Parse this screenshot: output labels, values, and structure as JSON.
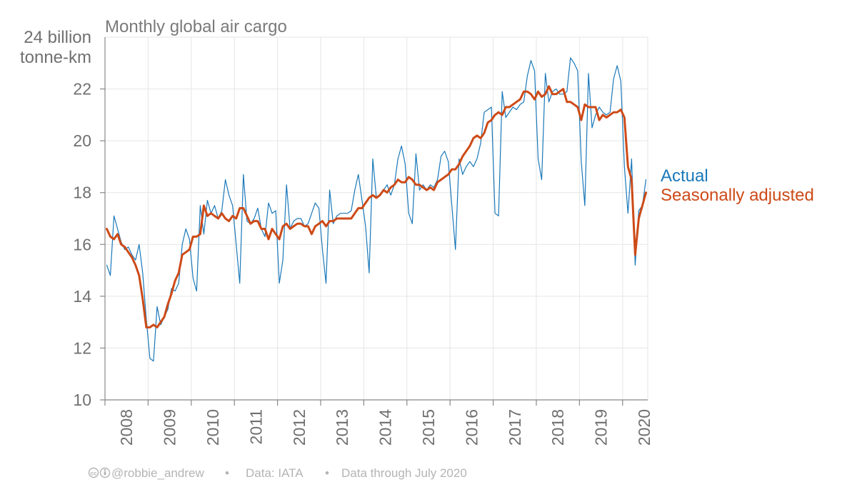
{
  "chart_data": {
    "type": "line",
    "title": "Monthly global air cargo",
    "ylabel_top": "24 billion",
    "ylabel_unit": "tonne-km",
    "ylim": [
      10,
      24
    ],
    "yticks": [
      10,
      12,
      14,
      16,
      18,
      20,
      22
    ],
    "x_start": "2008-01",
    "x_end": "2020-07",
    "xticks": [
      "2008",
      "2009",
      "2010",
      "2011",
      "2012",
      "2013",
      "2014",
      "2015",
      "2016",
      "2017",
      "2018",
      "2019",
      "2020"
    ],
    "grid": true,
    "legend_placement": "right",
    "series": [
      {
        "name": "Actual",
        "color": "#1a78b9",
        "x": [
          "2008-01",
          "2008-02",
          "2008-03",
          "2008-04",
          "2008-05",
          "2008-06",
          "2008-07",
          "2008-08",
          "2008-09",
          "2008-10",
          "2008-11",
          "2008-12",
          "2009-01",
          "2009-02",
          "2009-03",
          "2009-04",
          "2009-05",
          "2009-06",
          "2009-07",
          "2009-08",
          "2009-09",
          "2009-10",
          "2009-11",
          "2009-12",
          "2010-01",
          "2010-02",
          "2010-03",
          "2010-04",
          "2010-05",
          "2010-06",
          "2010-07",
          "2010-08",
          "2010-09",
          "2010-10",
          "2010-11",
          "2010-12",
          "2011-01",
          "2011-02",
          "2011-03",
          "2011-04",
          "2011-05",
          "2011-06",
          "2011-07",
          "2011-08",
          "2011-09",
          "2011-10",
          "2011-11",
          "2011-12",
          "2012-01",
          "2012-02",
          "2012-03",
          "2012-04",
          "2012-05",
          "2012-06",
          "2012-07",
          "2012-08",
          "2012-09",
          "2012-10",
          "2012-11",
          "2012-12",
          "2013-01",
          "2013-02",
          "2013-03",
          "2013-04",
          "2013-05",
          "2013-06",
          "2013-07",
          "2013-08",
          "2013-09",
          "2013-10",
          "2013-11",
          "2013-12",
          "2014-01",
          "2014-02",
          "2014-03",
          "2014-04",
          "2014-05",
          "2014-06",
          "2014-07",
          "2014-08",
          "2014-09",
          "2014-10",
          "2014-11",
          "2014-12",
          "2015-01",
          "2015-02",
          "2015-03",
          "2015-04",
          "2015-05",
          "2015-06",
          "2015-07",
          "2015-08",
          "2015-09",
          "2015-10",
          "2015-11",
          "2015-12",
          "2016-01",
          "2016-02",
          "2016-03",
          "2016-04",
          "2016-05",
          "2016-06",
          "2016-07",
          "2016-08",
          "2016-09",
          "2016-10",
          "2016-11",
          "2016-12",
          "2017-01",
          "2017-02",
          "2017-03",
          "2017-04",
          "2017-05",
          "2017-06",
          "2017-07",
          "2017-08",
          "2017-09",
          "2017-10",
          "2017-11",
          "2017-12",
          "2018-01",
          "2018-02",
          "2018-03",
          "2018-04",
          "2018-05",
          "2018-06",
          "2018-07",
          "2018-08",
          "2018-09",
          "2018-10",
          "2018-11",
          "2018-12",
          "2019-01",
          "2019-02",
          "2019-03",
          "2019-04",
          "2019-05",
          "2019-06",
          "2019-07",
          "2019-08",
          "2019-09",
          "2019-10",
          "2019-11",
          "2019-12",
          "2020-01",
          "2020-02",
          "2020-03",
          "2020-04",
          "2020-05",
          "2020-06",
          "2020-07"
        ],
        "values": [
          15.2,
          14.8,
          17.1,
          16.6,
          16.1,
          15.8,
          15.9,
          15.6,
          15.4,
          16.0,
          14.9,
          13.1,
          11.6,
          11.5,
          13.6,
          12.9,
          13.2,
          13.5,
          14.3,
          14.2,
          14.5,
          16.0,
          16.6,
          16.2,
          14.7,
          14.2,
          17.5,
          16.4,
          17.7,
          17.2,
          17.5,
          17.0,
          17.3,
          18.5,
          17.9,
          17.5,
          16.0,
          14.5,
          18.7,
          16.9,
          16.8,
          17.0,
          17.4,
          16.6,
          16.3,
          17.6,
          17.2,
          17.3,
          14.5,
          15.4,
          18.3,
          16.6,
          16.9,
          17.0,
          17.0,
          16.7,
          16.8,
          17.2,
          17.6,
          17.4,
          15.8,
          14.5,
          18.1,
          16.8,
          17.1,
          17.2,
          17.2,
          17.2,
          17.3,
          18.1,
          18.7,
          17.7,
          16.7,
          14.9,
          19.3,
          17.8,
          17.9,
          18.1,
          18.3,
          17.9,
          18.3,
          19.3,
          19.8,
          19.1,
          17.2,
          16.8,
          19.5,
          18.1,
          18.3,
          18.1,
          18.3,
          18.2,
          18.5,
          19.4,
          19.6,
          19.2,
          17.5,
          15.8,
          19.3,
          18.7,
          19.0,
          19.2,
          19.0,
          19.3,
          19.9,
          21.1,
          21.2,
          21.3,
          17.2,
          17.1,
          21.9,
          20.9,
          21.1,
          21.3,
          21.2,
          21.4,
          21.5,
          22.5,
          23.1,
          22.7,
          19.3,
          18.5,
          22.6,
          21.5,
          21.9,
          22.0,
          21.8,
          21.8,
          21.9,
          23.2,
          23.0,
          22.7,
          19.2,
          17.5,
          22.6,
          20.5,
          21.0,
          21.3,
          21.1,
          21.0,
          21.1,
          22.4,
          22.9,
          22.3,
          19.0,
          17.2,
          19.3,
          15.2,
          17.3,
          17.5,
          18.5
        ]
      },
      {
        "name": "Seasonally adjusted",
        "color": "#cd4a17",
        "x": [
          "2008-01",
          "2008-02",
          "2008-03",
          "2008-04",
          "2008-05",
          "2008-06",
          "2008-07",
          "2008-08",
          "2008-09",
          "2008-10",
          "2008-11",
          "2008-12",
          "2009-01",
          "2009-02",
          "2009-03",
          "2009-04",
          "2009-05",
          "2009-06",
          "2009-07",
          "2009-08",
          "2009-09",
          "2009-10",
          "2009-11",
          "2009-12",
          "2010-01",
          "2010-02",
          "2010-03",
          "2010-04",
          "2010-05",
          "2010-06",
          "2010-07",
          "2010-08",
          "2010-09",
          "2010-10",
          "2010-11",
          "2010-12",
          "2011-01",
          "2011-02",
          "2011-03",
          "2011-04",
          "2011-05",
          "2011-06",
          "2011-07",
          "2011-08",
          "2011-09",
          "2011-10",
          "2011-11",
          "2011-12",
          "2012-01",
          "2012-02",
          "2012-03",
          "2012-04",
          "2012-05",
          "2012-06",
          "2012-07",
          "2012-08",
          "2012-09",
          "2012-10",
          "2012-11",
          "2012-12",
          "2013-01",
          "2013-02",
          "2013-03",
          "2013-04",
          "2013-05",
          "2013-06",
          "2013-07",
          "2013-08",
          "2013-09",
          "2013-10",
          "2013-11",
          "2013-12",
          "2014-01",
          "2014-02",
          "2014-03",
          "2014-04",
          "2014-05",
          "2014-06",
          "2014-07",
          "2014-08",
          "2014-09",
          "2014-10",
          "2014-11",
          "2014-12",
          "2015-01",
          "2015-02",
          "2015-03",
          "2015-04",
          "2015-05",
          "2015-06",
          "2015-07",
          "2015-08",
          "2015-09",
          "2015-10",
          "2015-11",
          "2015-12",
          "2016-01",
          "2016-02",
          "2016-03",
          "2016-04",
          "2016-05",
          "2016-06",
          "2016-07",
          "2016-08",
          "2016-09",
          "2016-10",
          "2016-11",
          "2016-12",
          "2017-01",
          "2017-02",
          "2017-03",
          "2017-04",
          "2017-05",
          "2017-06",
          "2017-07",
          "2017-08",
          "2017-09",
          "2017-10",
          "2017-11",
          "2017-12",
          "2018-01",
          "2018-02",
          "2018-03",
          "2018-04",
          "2018-05",
          "2018-06",
          "2018-07",
          "2018-08",
          "2018-09",
          "2018-10",
          "2018-11",
          "2018-12",
          "2019-01",
          "2019-02",
          "2019-03",
          "2019-04",
          "2019-05",
          "2019-06",
          "2019-07",
          "2019-08",
          "2019-09",
          "2019-10",
          "2019-11",
          "2019-12",
          "2020-01",
          "2020-02",
          "2020-03",
          "2020-04",
          "2020-05",
          "2020-06",
          "2020-07"
        ],
        "values": [
          16.6,
          16.3,
          16.2,
          16.4,
          16.0,
          15.9,
          15.7,
          15.5,
          15.2,
          14.8,
          13.9,
          12.8,
          12.8,
          12.9,
          12.8,
          13.0,
          13.2,
          13.7,
          14.1,
          14.6,
          14.9,
          15.6,
          15.7,
          15.8,
          16.3,
          16.3,
          16.4,
          17.5,
          17.1,
          17.2,
          17.1,
          17.0,
          17.2,
          17.0,
          16.9,
          17.1,
          17.0,
          17.4,
          17.4,
          17.1,
          16.8,
          16.9,
          16.9,
          16.6,
          16.6,
          16.2,
          16.6,
          16.4,
          16.2,
          16.7,
          16.8,
          16.6,
          16.7,
          16.8,
          16.8,
          16.7,
          16.7,
          16.4,
          16.7,
          16.8,
          16.9,
          16.7,
          16.9,
          16.9,
          17.0,
          17.0,
          17.0,
          17.0,
          17.0,
          17.2,
          17.4,
          17.4,
          17.6,
          17.8,
          17.9,
          17.8,
          17.9,
          18.1,
          18.0,
          18.2,
          18.3,
          18.5,
          18.4,
          18.4,
          18.6,
          18.5,
          18.3,
          18.3,
          18.2,
          18.1,
          18.2,
          18.1,
          18.4,
          18.5,
          18.6,
          18.7,
          18.9,
          18.9,
          19.1,
          19.4,
          19.6,
          19.8,
          20.1,
          20.2,
          20.1,
          20.3,
          20.7,
          20.8,
          21.0,
          21.1,
          21.0,
          21.3,
          21.3,
          21.4,
          21.5,
          21.6,
          21.9,
          21.9,
          21.8,
          21.6,
          21.9,
          21.7,
          21.8,
          22.1,
          21.8,
          21.8,
          21.9,
          22.0,
          21.5,
          21.5,
          21.4,
          21.3,
          20.8,
          21.4,
          21.3,
          21.3,
          21.3,
          20.8,
          21.0,
          20.9,
          21.0,
          21.1,
          21.1,
          21.2,
          20.9,
          19.0,
          18.5,
          15.6,
          17.0,
          17.5,
          18.0
        ]
      }
    ]
  },
  "footer": {
    "cc_icon": "cc-icon",
    "by_icon": "attribution-icon",
    "author": "@robbie_andrew",
    "sep1": "•",
    "source": "Data: IATA",
    "sep2": "•",
    "through": "Data through July 2020"
  }
}
